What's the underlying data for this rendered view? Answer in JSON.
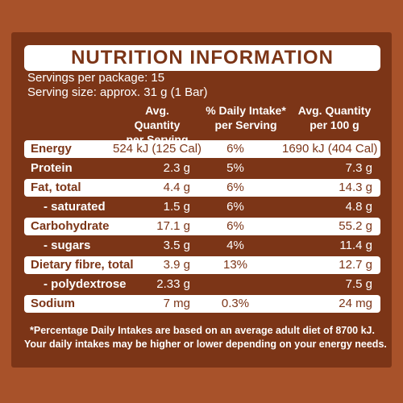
{
  "title": "NUTRITION INFORMATION",
  "servings": "Servings per package: 15",
  "serving_size": "Serving size: approx. 31 g (1 Bar)",
  "headers": {
    "col1": [
      "Avg. Quantity",
      "per Serving"
    ],
    "col2": [
      "% Daily Intake*",
      "per Serving"
    ],
    "col3": [
      "Avg. Quantity",
      "per 100 g"
    ]
  },
  "rows": [
    {
      "label": "Energy",
      "per_serving": "524 kJ (125 Cal)",
      "daily": "6%",
      "per_100g": "1690 kJ (404 Cal)"
    },
    {
      "label": "Protein",
      "per_serving": "2.3 g",
      "daily": "5%",
      "per_100g": "7.3 g"
    },
    {
      "label": "Fat, total",
      "per_serving": "4.4 g",
      "daily": "6%",
      "per_100g": "14.3 g"
    },
    {
      "label": "- saturated",
      "per_serving": "1.5 g",
      "daily": "6%",
      "per_100g": "4.8 g"
    },
    {
      "label": "Carbohydrate",
      "per_serving": "17.1 g",
      "daily": "6%",
      "per_100g": "55.2 g"
    },
    {
      "label": "- sugars",
      "per_serving": "3.5 g",
      "daily": "4%",
      "per_100g": "11.4 g"
    },
    {
      "label": "Dietary fibre, total",
      "per_serving": "3.9 g",
      "daily": "13%",
      "per_100g": "12.7 g"
    },
    {
      "label": "- polydextrose",
      "per_serving": "2.33 g",
      "daily": "",
      "per_100g": "7.5 g"
    },
    {
      "label": "Sodium",
      "per_serving": "7 mg",
      "daily": "0.3%",
      "per_100g": "24 mg"
    }
  ],
  "footnote": [
    "*Percentage Daily Intakes are based on an average adult diet of 8700 kJ.",
    "Your daily intakes may be higher or lower depending on your energy needs."
  ]
}
